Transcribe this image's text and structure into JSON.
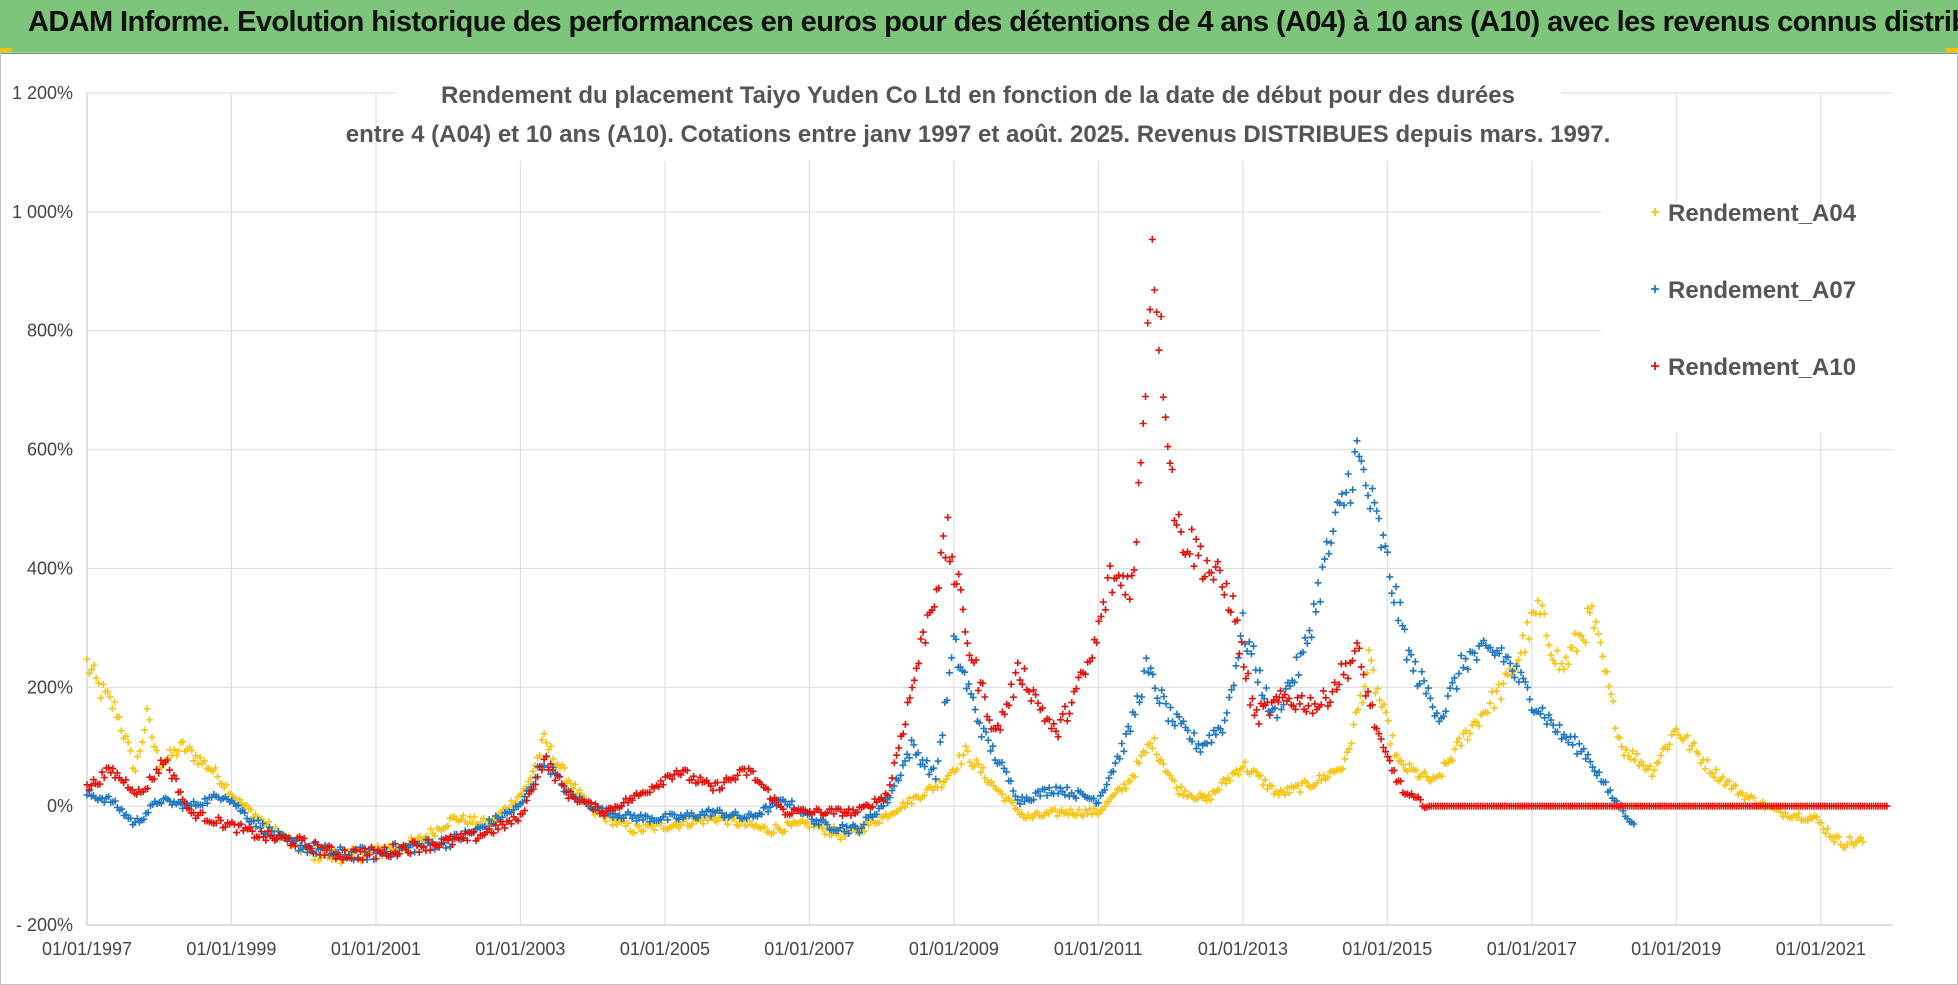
{
  "banner": {
    "title": "ADAM Informe. Evolution historique des performances en euros pour des détentions de 4 ans (A04) à 10 ans (A10) avec les revenus connus distribués"
  },
  "colors": {
    "banner_bg": "#7dc57a",
    "A04": "#f5c518",
    "A07": "#1f78c1",
    "A10": "#e3120b"
  },
  "chart_data": {
    "type": "scatter",
    "title_line1": "Rendement du placement Taiyo Yuden Co Ltd en fonction de la date de début pour des durées",
    "title_line2": "entre 4 (A04) et 10 ans (A10). Cotations entre janv 1997 et août. 2025. Revenus DISTRIBUES depuis mars. 1997.",
    "xlabel": "",
    "ylabel": "",
    "x_range": [
      "01/01/1997",
      "01/01/2022"
    ],
    "x_tick_labels": [
      "01/01/1997",
      "01/01/1999",
      "01/01/2001",
      "01/01/2003",
      "01/01/2005",
      "01/01/2007",
      "01/01/2009",
      "01/01/2011",
      "01/01/2013",
      "01/01/2015",
      "01/01/2017",
      "01/01/2019",
      "01/01/2021"
    ],
    "y_range": [
      -200,
      1200
    ],
    "y_ticks": [
      -200,
      0,
      200,
      400,
      600,
      800,
      1000,
      1200
    ],
    "y_tick_labels": [
      "- 200%",
      "0%",
      "200%",
      "400%",
      "600%",
      "800%",
      "1 000%",
      "1 200%"
    ],
    "grid": true,
    "legend_position": "right",
    "marker": "+",
    "series": [
      {
        "name": "Rendement_A04",
        "color": "#f5c518",
        "points": [
          [
            "1997-01-01",
            240
          ],
          [
            "1997-03-01",
            200
          ],
          [
            "1997-06-01",
            160
          ],
          [
            "1997-09-01",
            60
          ],
          [
            "1997-11-01",
            150
          ],
          [
            "1998-01-01",
            70
          ],
          [
            "1998-05-01",
            100
          ],
          [
            "1998-10-01",
            60
          ],
          [
            "1999-02-01",
            10
          ],
          [
            "1999-08-01",
            -40
          ],
          [
            "2000-02-01",
            -80
          ],
          [
            "2000-08-01",
            -85
          ],
          [
            "2001-02-01",
            -75
          ],
          [
            "2001-08-01",
            -60
          ],
          [
            "2002-02-01",
            -20
          ],
          [
            "2002-08-01",
            -30
          ],
          [
            "2003-02-01",
            30
          ],
          [
            "2003-05-01",
            110
          ],
          [
            "2003-08-01",
            60
          ],
          [
            "2004-01-01",
            -10
          ],
          [
            "2004-08-01",
            -40
          ],
          [
            "2005-03-01",
            -30
          ],
          [
            "2005-10-01",
            -20
          ],
          [
            "2006-06-01",
            -40
          ],
          [
            "2007-01-01",
            -30
          ],
          [
            "2007-07-01",
            -50
          ],
          [
            "2008-01-01",
            -20
          ],
          [
            "2008-06-01",
            10
          ],
          [
            "2008-11-01",
            40
          ],
          [
            "2009-03-01",
            90
          ],
          [
            "2009-08-01",
            30
          ],
          [
            "2010-01-01",
            -20
          ],
          [
            "2010-07-01",
            -10
          ],
          [
            "2011-01-01",
            -10
          ],
          [
            "2011-06-01",
            40
          ],
          [
            "2011-10-01",
            110
          ],
          [
            "2012-02-01",
            30
          ],
          [
            "2012-07-01",
            10
          ],
          [
            "2013-01-01",
            70
          ],
          [
            "2013-07-01",
            20
          ],
          [
            "2014-01-01",
            40
          ],
          [
            "2014-06-01",
            70
          ],
          [
            "2014-10-01",
            240
          ],
          [
            "2015-03-01",
            70
          ],
          [
            "2015-09-01",
            40
          ],
          [
            "2016-02-01",
            120
          ],
          [
            "2016-09-01",
            210
          ],
          [
            "2017-02-01",
            330
          ],
          [
            "2017-06-01",
            230
          ],
          [
            "2017-11-01",
            320
          ],
          [
            "2018-04-01",
            100
          ],
          [
            "2018-09-01",
            60
          ],
          [
            "2019-01-01",
            130
          ],
          [
            "2019-07-01",
            60
          ],
          [
            "2019-12-01",
            20
          ],
          [
            "2020-06-01",
            -10
          ],
          [
            "2020-12-01",
            -20
          ],
          [
            "2021-04-01",
            -60
          ],
          [
            "2021-08-01",
            -60
          ]
        ]
      },
      {
        "name": "Rendement_A07",
        "color": "#1f78c1",
        "points": [
          [
            "1997-01-01",
            20
          ],
          [
            "1997-05-01",
            10
          ],
          [
            "1997-09-01",
            -30
          ],
          [
            "1998-01-01",
            10
          ],
          [
            "1998-06-01",
            0
          ],
          [
            "1998-12-01",
            20
          ],
          [
            "1999-04-01",
            -20
          ],
          [
            "1999-10-01",
            -60
          ],
          [
            "2000-06-01",
            -80
          ],
          [
            "2001-01-01",
            -80
          ],
          [
            "2001-06-01",
            -70
          ],
          [
            "2002-01-01",
            -60
          ],
          [
            "2002-06-01",
            -40
          ],
          [
            "2003-01-01",
            0
          ],
          [
            "2003-05-01",
            80
          ],
          [
            "2003-09-01",
            20
          ],
          [
            "2004-03-01",
            -10
          ],
          [
            "2004-09-01",
            -20
          ],
          [
            "2005-03-01",
            -20
          ],
          [
            "2005-09-01",
            -10
          ],
          [
            "2006-03-01",
            -20
          ],
          [
            "2006-09-01",
            10
          ],
          [
            "2007-03-01",
            -30
          ],
          [
            "2007-09-01",
            -40
          ],
          [
            "2008-02-01",
            10
          ],
          [
            "2008-06-01",
            100
          ],
          [
            "2008-10-01",
            50
          ],
          [
            "2009-01-01",
            270
          ],
          [
            "2009-06-01",
            120
          ],
          [
            "2009-12-01",
            10
          ],
          [
            "2010-06-01",
            30
          ],
          [
            "2011-01-01",
            10
          ],
          [
            "2011-06-01",
            120
          ],
          [
            "2011-09-01",
            230
          ],
          [
            "2012-01-01",
            150
          ],
          [
            "2012-06-01",
            100
          ],
          [
            "2012-10-01",
            140
          ],
          [
            "2013-01-01",
            300
          ],
          [
            "2013-06-01",
            150
          ],
          [
            "2013-11-01",
            250
          ],
          [
            "2014-03-01",
            420
          ],
          [
            "2014-08-01",
            590
          ],
          [
            "2014-12-01",
            450
          ],
          [
            "2015-05-01",
            240
          ],
          [
            "2015-10-01",
            150
          ],
          [
            "2016-02-01",
            250
          ],
          [
            "2016-08-01",
            260
          ],
          [
            "2017-01-01",
            180
          ],
          [
            "2017-06-01",
            120
          ],
          [
            "2017-10-01",
            90
          ],
          [
            "2018-02-01",
            20
          ],
          [
            "2018-06-01",
            -30
          ]
        ]
      },
      {
        "name": "Rendement_A10",
        "color": "#e3120b",
        "points": [
          [
            "1997-01-01",
            30
          ],
          [
            "1997-05-01",
            60
          ],
          [
            "1997-10-01",
            20
          ],
          [
            "1998-02-01",
            80
          ],
          [
            "1998-06-01",
            -10
          ],
          [
            "1998-12-01",
            -30
          ],
          [
            "1999-06-01",
            -50
          ],
          [
            "1999-12-01",
            -60
          ],
          [
            "2000-06-01",
            -80
          ],
          [
            "2001-01-01",
            -80
          ],
          [
            "2001-06-01",
            -70
          ],
          [
            "2002-01-01",
            -60
          ],
          [
            "2002-06-01",
            -50
          ],
          [
            "2003-01-01",
            -20
          ],
          [
            "2003-05-01",
            80
          ],
          [
            "2003-09-01",
            20
          ],
          [
            "2004-03-01",
            -10
          ],
          [
            "2004-09-01",
            20
          ],
          [
            "2005-03-01",
            60
          ],
          [
            "2005-09-01",
            30
          ],
          [
            "2006-03-01",
            60
          ],
          [
            "2006-09-01",
            -10
          ],
          [
            "2007-03-01",
            -10
          ],
          [
            "2007-09-01",
            -10
          ],
          [
            "2008-02-01",
            20
          ],
          [
            "2008-05-01",
            150
          ],
          [
            "2008-09-01",
            330
          ],
          [
            "2008-12-01",
            450
          ],
          [
            "2009-04-01",
            250
          ],
          [
            "2009-08-01",
            120
          ],
          [
            "2009-12-01",
            230
          ],
          [
            "2010-06-01",
            120
          ],
          [
            "2010-12-01",
            250
          ],
          [
            "2011-03-01",
            380
          ],
          [
            "2011-07-01",
            380
          ],
          [
            "2011-10-01",
            950
          ],
          [
            "2012-02-01",
            470
          ],
          [
            "2012-06-01",
            420
          ],
          [
            "2012-11-01",
            350
          ],
          [
            "2013-03-01",
            150
          ],
          [
            "2013-08-01",
            180
          ],
          [
            "2014-02-01",
            170
          ],
          [
            "2014-08-01",
            260
          ],
          [
            "2014-12-01",
            100
          ],
          [
            "2015-04-01",
            20
          ],
          [
            "2015-08-01",
            0
          ],
          [
            "2016-06-01",
            0
          ],
          [
            "2017-06-01",
            0
          ],
          [
            "2018-06-01",
            0
          ],
          [
            "2019-06-01",
            0
          ],
          [
            "2020-06-01",
            0
          ],
          [
            "2021-12-01",
            0
          ]
        ]
      }
    ]
  }
}
